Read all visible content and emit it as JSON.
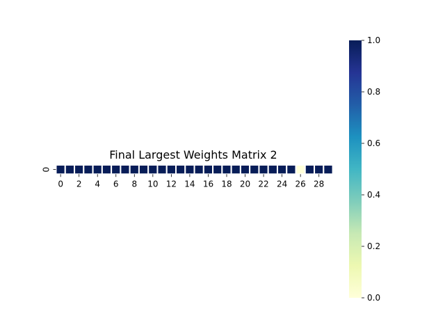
{
  "chart_data": {
    "type": "heatmap",
    "title": "Final Largest Weights Matrix 2",
    "xlabel": "",
    "ylabel": "",
    "rows": [
      "0"
    ],
    "columns": [
      0,
      1,
      2,
      3,
      4,
      5,
      6,
      7,
      8,
      9,
      10,
      11,
      12,
      13,
      14,
      15,
      16,
      17,
      18,
      19,
      20,
      21,
      22,
      23,
      24,
      25,
      26,
      27,
      28,
      29
    ],
    "x_tick_labels": [
      "0",
      "2",
      "4",
      "6",
      "8",
      "10",
      "12",
      "14",
      "16",
      "18",
      "20",
      "22",
      "24",
      "26",
      "28"
    ],
    "y_tick_labels": [
      "0"
    ],
    "values": [
      [
        1,
        1,
        1,
        1,
        1,
        1,
        1,
        1,
        1,
        1,
        1,
        1,
        1,
        1,
        1,
        1,
        1,
        1,
        1,
        1,
        1,
        1,
        1,
        1,
        1,
        1,
        0,
        1,
        1,
        1
      ]
    ],
    "colormap": "YlGnBu",
    "colormap_stops": [
      "#ffffd9",
      "#edf8b1",
      "#c7e9b4",
      "#7fcdbb",
      "#41b6c4",
      "#1d91c0",
      "#225ea8",
      "#253494",
      "#081d58"
    ],
    "cell_border_color": "#ffffff",
    "colorbar": {
      "range": [
        0.0,
        1.0
      ],
      "tick_labels": [
        "0.0",
        "0.2",
        "0.4",
        "0.6",
        "0.8",
        "1.0"
      ]
    }
  }
}
